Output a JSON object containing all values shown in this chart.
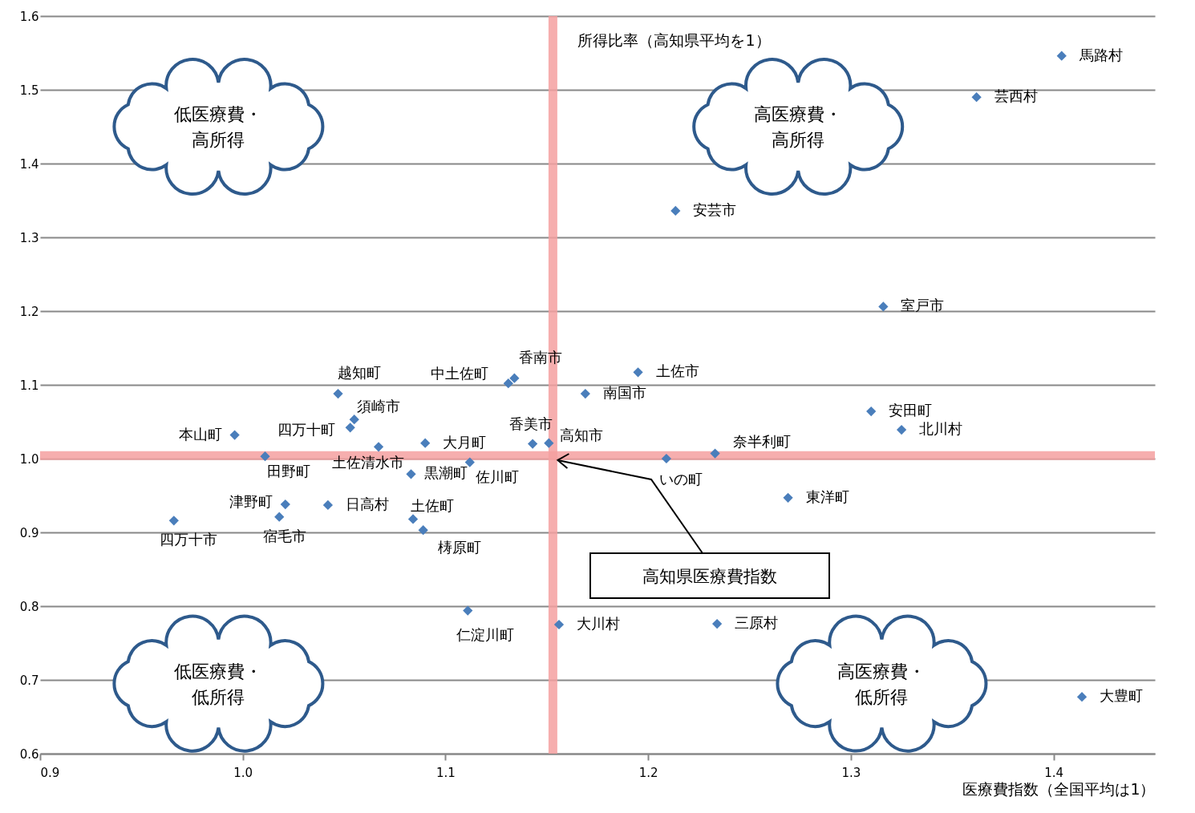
{
  "chart_data": {
    "type": "scatter",
    "xlabel": "医療費指数（全国平均は1）",
    "ylabel": "所得比率（高知県平均を1）",
    "x": [
      1.404,
      1.362,
      1.2135,
      1.316,
      1.195,
      1.169,
      1.134,
      1.131,
      1.047,
      1.055,
      1.053,
      0.996,
      1.011,
      1.067,
      1.09,
      1.143,
      1.151,
      1.112,
      1.083,
      1.021,
      1.042,
      1.018,
      0.966,
      1.084,
      1.089,
      1.111,
      1.156,
      1.234,
      1.414,
      1.209,
      1.233,
      1.269,
      1.31,
      1.325
    ],
    "series": [
      {
        "color": "#4a7ebb",
        "values": [
          1.546,
          1.49,
          1.336,
          1.206,
          1.117,
          1.088,
          1.109,
          1.102,
          1.088,
          1.053,
          1.042,
          1.032,
          1.003,
          1.016,
          1.021,
          1.02,
          1.021,
          0.995,
          0.979,
          0.938,
          0.937,
          0.921,
          0.916,
          0.918,
          0.903,
          0.794,
          0.775,
          0.776,
          0.677,
          1.0,
          1.007,
          0.947,
          1.064,
          1.039
        ]
      }
    ],
    "marker": "diamond",
    "grid": "y",
    "xlim": [
      0.9,
      1.45
    ],
    "xticks": [
      0.9,
      {
        "value": 1,
        "label": "1.0"
      },
      1.1,
      1.2,
      1.3,
      1.4
    ],
    "ylim": [
      0.6,
      1.6
    ],
    "yticks": [
      0.6,
      0.7,
      0.8,
      0.9,
      {
        "value": 1,
        "label": "1.0"
      },
      1.1,
      1.2,
      1.3,
      1.4,
      1.5,
      1.6
    ],
    "ref_lines": [
      {
        "axis": "x",
        "value": 1.153,
        "label": "高知県医療費指数",
        "color": "#f4a0a0"
      },
      {
        "axis": "y",
        "value": 1.004,
        "color": "#f4a0a0"
      }
    ],
    "annotations": [
      "低医療費・高所得",
      "高医療費・高所得",
      "低医療費・低所得",
      "高医療費・低所得",
      {
        "text": "馬路村",
        "x": 1.404,
        "y": 1.546
      },
      {
        "text": "芸西村",
        "x": 1.362,
        "y": 1.49
      },
      {
        "text": "安芸市",
        "x": 1.2135,
        "y": 1.336
      },
      {
        "text": "室戸市",
        "x": 1.316,
        "y": 1.206
      },
      {
        "text": "土佐市",
        "x": 1.195,
        "y": 1.117
      },
      {
        "text": "南国市",
        "x": 1.169,
        "y": 1.088
      },
      {
        "text": "香南市",
        "x": 1.134,
        "y": 1.109
      },
      {
        "text": "中土佐町",
        "x": 1.131,
        "y": 1.102
      },
      {
        "text": "越知町",
        "x": 1.047,
        "y": 1.088
      },
      {
        "text": "須崎市",
        "x": 1.055,
        "y": 1.053
      },
      {
        "text": "四万十町",
        "x": 1.053,
        "y": 1.042
      },
      {
        "text": "本山町",
        "x": 0.996,
        "y": 1.032
      },
      {
        "text": "田野町",
        "x": 1.011,
        "y": 1.003
      },
      {
        "text": "土佐清水市",
        "x": 1.067,
        "y": 1.016
      },
      {
        "text": "大月町",
        "x": 1.09,
        "y": 1.021
      },
      {
        "text": "香美市",
        "x": 1.143,
        "y": 1.02
      },
      {
        "text": "高知市",
        "x": 1.151,
        "y": 1.021
      },
      {
        "text": "佐川町",
        "x": 1.112,
        "y": 0.995
      },
      {
        "text": "黒潮町",
        "x": 1.083,
        "y": 0.979
      },
      {
        "text": "津野町",
        "x": 1.021,
        "y": 0.938
      },
      {
        "text": "日高村",
        "x": 1.042,
        "y": 0.937
      },
      {
        "text": "宿毛市",
        "x": 1.018,
        "y": 0.921
      },
      {
        "text": "四万十市",
        "x": 0.966,
        "y": 0.916
      },
      {
        "text": "土佐町",
        "x": 1.084,
        "y": 0.918
      },
      {
        "text": "梼原町",
        "x": 1.089,
        "y": 0.903
      },
      {
        "text": "仁淀川町",
        "x": 1.111,
        "y": 0.794
      },
      {
        "text": "大川村",
        "x": 1.156,
        "y": 0.775
      },
      {
        "text": "三原村",
        "x": 1.234,
        "y": 0.776
      },
      {
        "text": "大豊町",
        "x": 1.414,
        "y": 0.677
      },
      {
        "text": "いの町",
        "x": 1.209,
        "y": 1.0
      },
      {
        "text": "奈半利町",
        "x": 1.233,
        "y": 1.007
      },
      {
        "text": "東洋町",
        "x": 1.269,
        "y": 0.947
      },
      {
        "text": "安田町",
        "x": 1.31,
        "y": 1.064
      },
      {
        "text": "北川村",
        "x": 1.325,
        "y": 1.039
      }
    ]
  }
}
